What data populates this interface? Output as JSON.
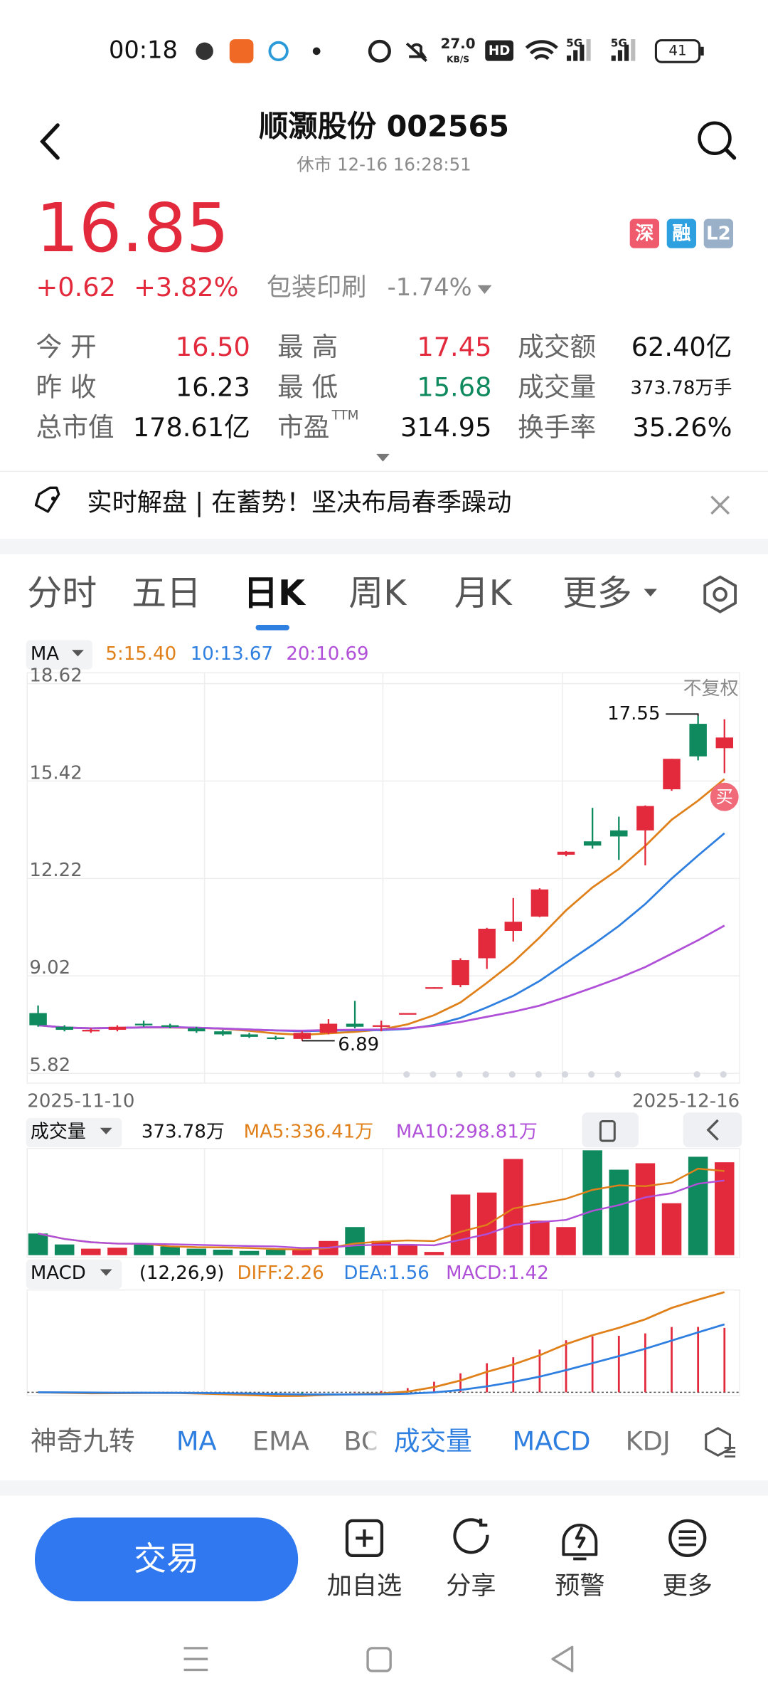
{
  "status": {
    "time": "00:18",
    "speed": "27.0",
    "speed_unit": "KB/S",
    "hd": "HD",
    "net1": "5G",
    "net2": "5G",
    "battery": "41"
  },
  "header": {
    "title": "顺灏股份 002565",
    "subtitle": "休市  12-16 16:28:51"
  },
  "quote": {
    "price": "16.85",
    "change": "+0.62",
    "change_pct": "+3.82%",
    "sector": "包装印刷",
    "sector_pct": "-1.74%",
    "badges": [
      "深",
      "融",
      "L2"
    ]
  },
  "stats": [
    {
      "label": "今 开",
      "value": "16.50",
      "color": "#e32a3d"
    },
    {
      "label": "最 高",
      "value": "17.45",
      "color": "#e32a3d"
    },
    {
      "label": "成交额",
      "value": "62.40亿",
      "color": "#111111"
    },
    {
      "label": "昨 收",
      "value": "16.23",
      "color": "#111111"
    },
    {
      "label": "最 低",
      "value": "15.68",
      "color": "#0f8a5f"
    },
    {
      "label": "成交量",
      "value": "373.78万手",
      "color": "#111111"
    },
    {
      "label": "总市值",
      "value": "178.61亿",
      "color": "#111111"
    },
    {
      "label": "市盈",
      "sup": "TTM",
      "value": "314.95",
      "color": "#111111"
    },
    {
      "label": "换手率",
      "value": "35.26%",
      "color": "#111111"
    }
  ],
  "banner": "实时解盘 | 在蓄势！坚决布局春季躁动",
  "tabs": [
    "分时",
    "五日",
    "日K",
    "周K",
    "月K",
    "更多"
  ],
  "ma_legend": {
    "label": "MA",
    "ma5": "5:15.40",
    "ma10": "10:13.67",
    "ma20": "20:10.69"
  },
  "price_note": "不复权",
  "buy_badge": "买",
  "chart_data": [
    {
      "type": "candlestick",
      "categories": [
        "2025-11-10",
        null,
        null,
        null,
        null,
        null,
        null,
        null,
        null,
        null,
        null,
        null,
        null,
        null,
        null,
        null,
        null,
        null,
        null,
        null,
        null,
        null,
        null,
        null,
        null,
        null,
        "2025-12-16"
      ],
      "open": [
        7.8,
        7.35,
        7.2,
        7.25,
        7.45,
        7.4,
        7.3,
        7.2,
        7.1,
        7.0,
        6.95,
        7.15,
        7.45,
        7.35,
        7.78,
        8.6,
        8.72,
        9.6,
        10.5,
        10.97,
        13.0,
        13.44,
        13.8,
        13.8,
        15.15,
        17.3,
        16.5
      ],
      "close": [
        7.4,
        7.25,
        7.25,
        7.35,
        7.4,
        7.38,
        7.2,
        7.1,
        7.02,
        6.95,
        7.15,
        7.45,
        7.35,
        7.4,
        7.8,
        8.65,
        9.54,
        10.57,
        10.8,
        11.86,
        13.1,
        13.3,
        13.6,
        14.6,
        16.15,
        16.23,
        16.85
      ],
      "high": [
        8.05,
        7.4,
        7.3,
        7.4,
        7.55,
        7.45,
        7.35,
        7.25,
        7.15,
        7.05,
        7.2,
        7.6,
        8.2,
        7.55,
        7.8,
        8.65,
        9.6,
        10.6,
        11.58,
        11.9,
        13.12,
        14.54,
        14.25,
        14.62,
        16.15,
        17.55,
        17.45
      ],
      "low": [
        7.35,
        7.2,
        7.15,
        7.2,
        7.35,
        7.3,
        7.15,
        7.05,
        6.98,
        6.92,
        6.89,
        7.1,
        7.3,
        7.2,
        7.78,
        8.6,
        8.65,
        9.25,
        10.15,
        10.95,
        12.95,
        13.2,
        12.83,
        12.65,
        15.1,
        16.1,
        15.68
      ],
      "ylim": [
        5.82,
        18.62
      ],
      "yticks": [
        5.82,
        9.02,
        12.22,
        15.42,
        18.62
      ],
      "up_color": "#e32a3d",
      "down_color": "#0f8a5f",
      "grid": true
    },
    {
      "type": "bar",
      "name": "成交量",
      "latest": "373.78万",
      "ma5": "MA5:336.41万",
      "ma10": "MA10:298.81万",
      "values": [
        87,
        43,
        26,
        30,
        43,
        35,
        26,
        22,
        17,
        22,
        26,
        57,
        113,
        57,
        43,
        13,
        244,
        252,
        387,
        139,
        113,
        422,
        344,
        370,
        209,
        396,
        373.78
      ],
      "ylim": [
        0,
        425
      ]
    }
  ],
  "macd": {
    "label": "MACD",
    "params": "(12,26,9)",
    "diff": "DIFF:2.26",
    "dea": "DEA:1.56",
    "macd": "MACD:1.42"
  },
  "indicators": [
    "神奇九转",
    "MA",
    "EMA",
    "BOLL",
    "成交量",
    "MACD",
    "KDJ"
  ],
  "actions": {
    "trade": "交易",
    "items": [
      "加自选",
      "分享",
      "预警",
      "更多"
    ]
  }
}
